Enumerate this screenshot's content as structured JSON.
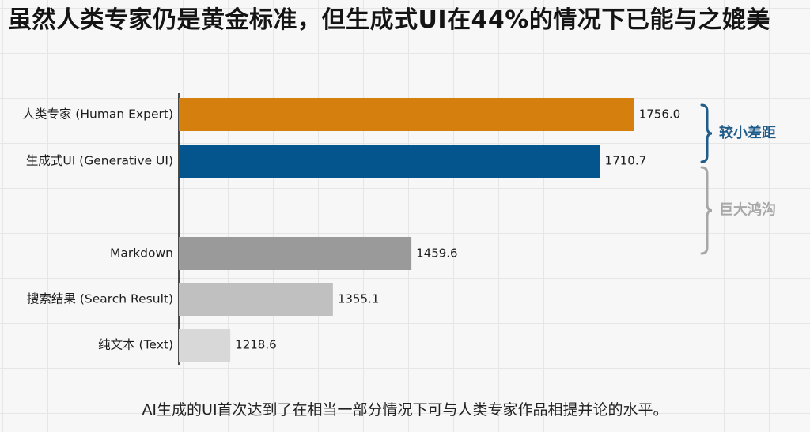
{
  "page": {
    "title": "虽然人类专家仍是黄金标准，但生成式UI在44%的情况下已能与之媲美",
    "caption": "AI生成的UI首次达到了在相当一部分情况下可与人类专家作品相提并论的水平。"
  },
  "chart_data": {
    "type": "bar",
    "orientation": "horizontal",
    "title": "虽然人类专家仍是黄金标准，但生成式UI在44%的情况下已能与之媲美",
    "xlim": [
      1150,
      1770
    ],
    "grid": true,
    "categories": [
      "人类专家 (Human Expert)",
      "生成式UI (Generative UI)",
      "Markdown",
      "搜索结果 (Search Result)",
      "纯文本 (Text)"
    ],
    "values": [
      1756.0,
      1710.7,
      1459.6,
      1355.1,
      1218.6
    ],
    "value_labels": [
      "1756.0",
      "1710.7",
      "1459.6",
      "1355.1",
      "1218.6"
    ],
    "colors": [
      "#d57f0f",
      "#04548e",
      "#9a9a9a",
      "#c0c0c0",
      "#d8d8d8"
    ],
    "annotations": [
      {
        "text": "较小差距",
        "from_category": 0,
        "to_category": 1,
        "color": "#1f5c8a"
      },
      {
        "text": "巨大鸿沟",
        "from_category": 1,
        "to_category": 2,
        "color": "#a8a8a8"
      }
    ]
  }
}
